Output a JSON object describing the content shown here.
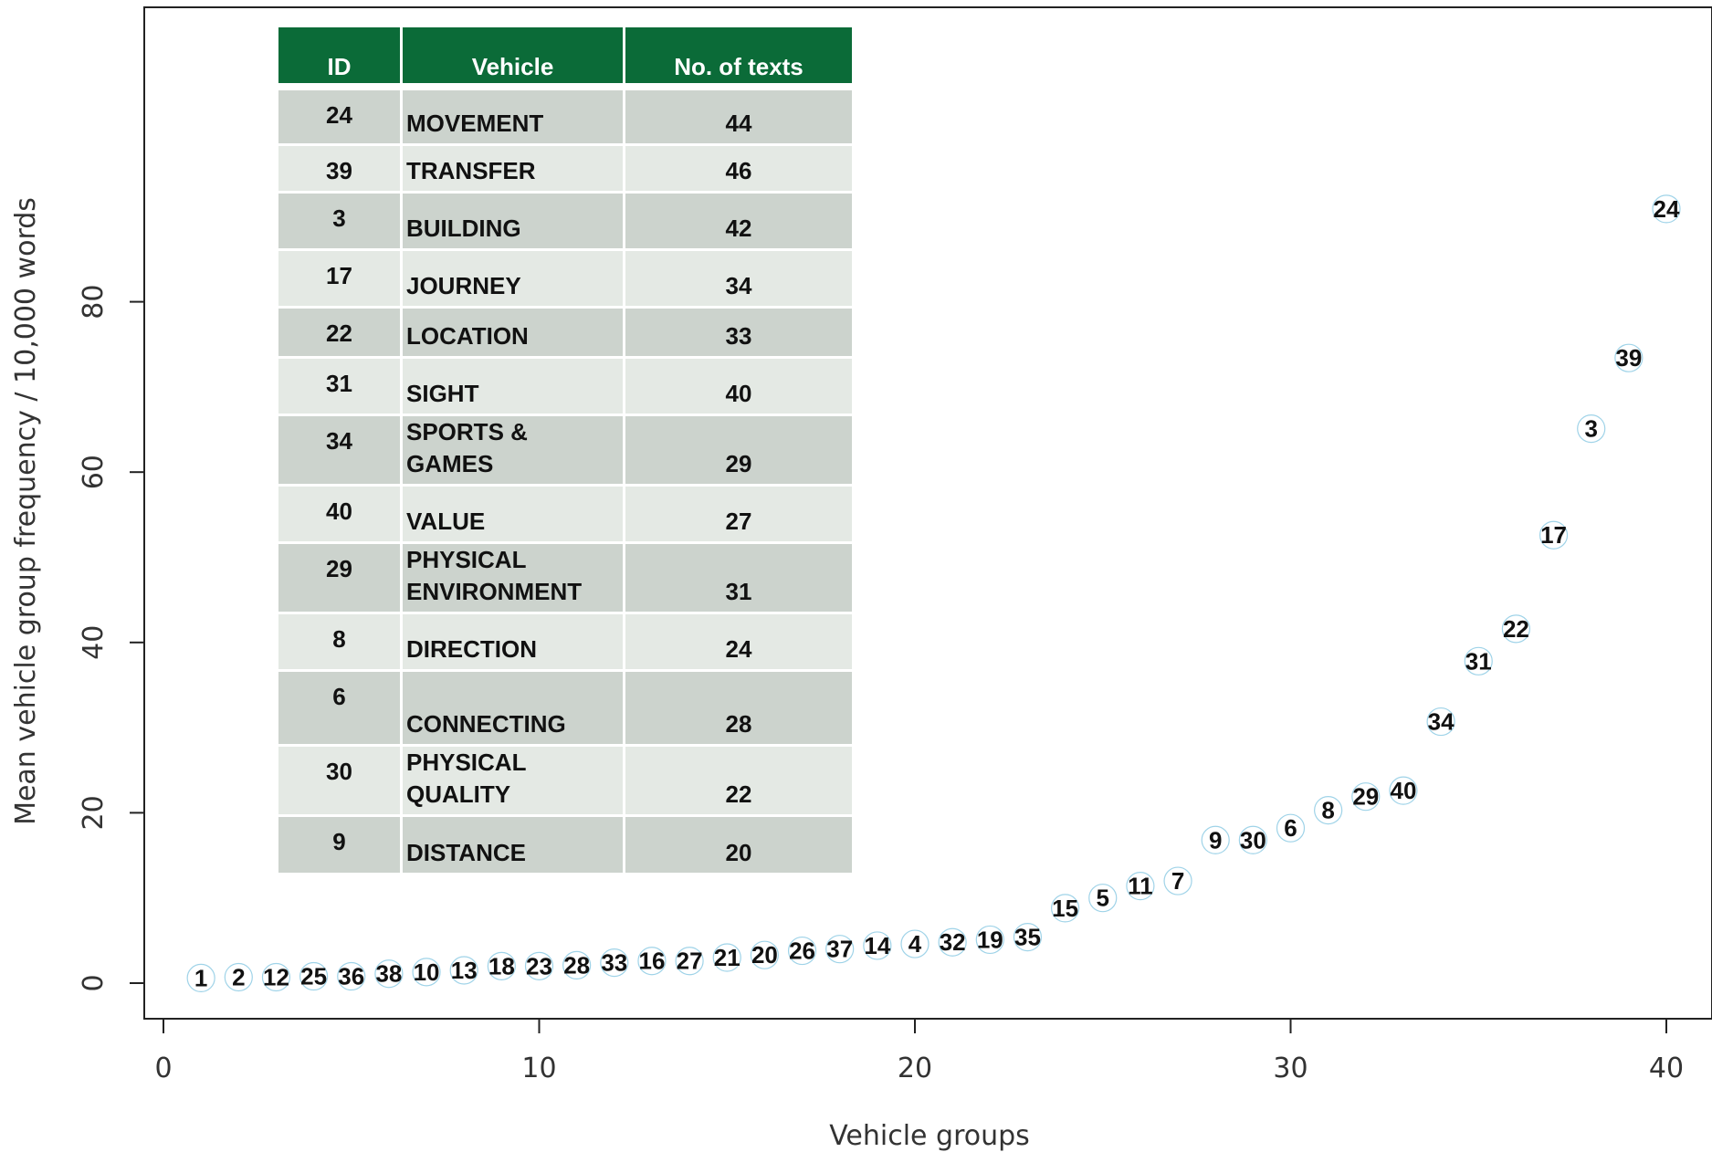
{
  "chart_data": {
    "type": "scatter",
    "title": "",
    "xlabel": "Vehicle groups",
    "ylabel": "Mean vehicle group frequency / 10,000 words",
    "xlim": [
      0,
      41
    ],
    "ylim": [
      -3,
      94
    ],
    "xticks": [
      0,
      10,
      20,
      30,
      40
    ],
    "yticks": [
      0,
      20,
      40,
      60,
      80
    ],
    "grid": false,
    "points": [
      {
        "x": 1,
        "y": 0.6,
        "label": "1"
      },
      {
        "x": 2,
        "y": 0.7,
        "label": "2"
      },
      {
        "x": 3,
        "y": 0.7,
        "label": "12"
      },
      {
        "x": 4,
        "y": 0.8,
        "label": "25"
      },
      {
        "x": 5,
        "y": 0.8,
        "label": "36"
      },
      {
        "x": 6,
        "y": 1.1,
        "label": "38"
      },
      {
        "x": 7,
        "y": 1.3,
        "label": "10"
      },
      {
        "x": 8,
        "y": 1.5,
        "label": "13"
      },
      {
        "x": 9,
        "y": 2.0,
        "label": "18"
      },
      {
        "x": 10,
        "y": 2.0,
        "label": "23"
      },
      {
        "x": 11,
        "y": 2.1,
        "label": "28"
      },
      {
        "x": 12,
        "y": 2.4,
        "label": "33"
      },
      {
        "x": 13,
        "y": 2.6,
        "label": "16"
      },
      {
        "x": 14,
        "y": 2.6,
        "label": "27"
      },
      {
        "x": 15,
        "y": 3.0,
        "label": "21"
      },
      {
        "x": 16,
        "y": 3.3,
        "label": "20"
      },
      {
        "x": 17,
        "y": 3.8,
        "label": "26"
      },
      {
        "x": 18,
        "y": 4.0,
        "label": "37"
      },
      {
        "x": 19,
        "y": 4.4,
        "label": "14"
      },
      {
        "x": 20,
        "y": 4.6,
        "label": "4"
      },
      {
        "x": 21,
        "y": 4.8,
        "label": "32"
      },
      {
        "x": 22,
        "y": 5.1,
        "label": "19"
      },
      {
        "x": 23,
        "y": 5.4,
        "label": "35"
      },
      {
        "x": 24,
        "y": 8.8,
        "label": "15"
      },
      {
        "x": 25,
        "y": 10.0,
        "label": "5"
      },
      {
        "x": 26,
        "y": 11.4,
        "label": "11"
      },
      {
        "x": 27,
        "y": 12.0,
        "label": "7"
      },
      {
        "x": 28,
        "y": 16.8,
        "label": "9"
      },
      {
        "x": 29,
        "y": 16.8,
        "label": "30"
      },
      {
        "x": 30,
        "y": 18.2,
        "label": "6"
      },
      {
        "x": 31,
        "y": 20.3,
        "label": "8"
      },
      {
        "x": 32,
        "y": 21.9,
        "label": "29"
      },
      {
        "x": 33,
        "y": 22.6,
        "label": "40"
      },
      {
        "x": 34,
        "y": 30.7,
        "label": "34"
      },
      {
        "x": 35,
        "y": 37.8,
        "label": "31"
      },
      {
        "x": 36,
        "y": 41.6,
        "label": "22"
      },
      {
        "x": 37,
        "y": 52.6,
        "label": "17"
      },
      {
        "x": 38,
        "y": 65.1,
        "label": "3"
      },
      {
        "x": 39,
        "y": 73.4,
        "label": "39"
      },
      {
        "x": 40,
        "y": 90.9,
        "label": "24"
      }
    ]
  },
  "table": {
    "headers": {
      "id": "ID",
      "vehicle": "Vehicle",
      "n": "No. of texts"
    },
    "rows": [
      {
        "id": "24",
        "vehicle": "MOVEMENT",
        "n": "44"
      },
      {
        "id": "39",
        "vehicle": "TRANSFER",
        "n": "46"
      },
      {
        "id": "3",
        "vehicle": "BUILDING",
        "n": "42"
      },
      {
        "id": "17",
        "vehicle": "JOURNEY",
        "n": "34"
      },
      {
        "id": "22",
        "vehicle": "LOCATION",
        "n": "33"
      },
      {
        "id": "31",
        "vehicle": "SIGHT",
        "n": "40"
      },
      {
        "id": "34",
        "vehicle": "SPORTS & GAMES",
        "n": "29"
      },
      {
        "id": "40",
        "vehicle": "VALUE",
        "n": "27"
      },
      {
        "id": "29",
        "vehicle": "PHYSICAL ENVIRONMENT",
        "n": "31"
      },
      {
        "id": "8",
        "vehicle": "DIRECTION",
        "n": "24"
      },
      {
        "id": "6",
        "vehicle": "CONNECTING",
        "n": "28"
      },
      {
        "id": "30",
        "vehicle": "PHYSICAL QUALITY",
        "n": "22"
      },
      {
        "id": "9",
        "vehicle": "DISTANCE",
        "n": "20"
      }
    ],
    "colors": {
      "header": "#0b6b38",
      "row_dark": "#ccd3cd",
      "row_light": "#e4e9e4"
    }
  }
}
